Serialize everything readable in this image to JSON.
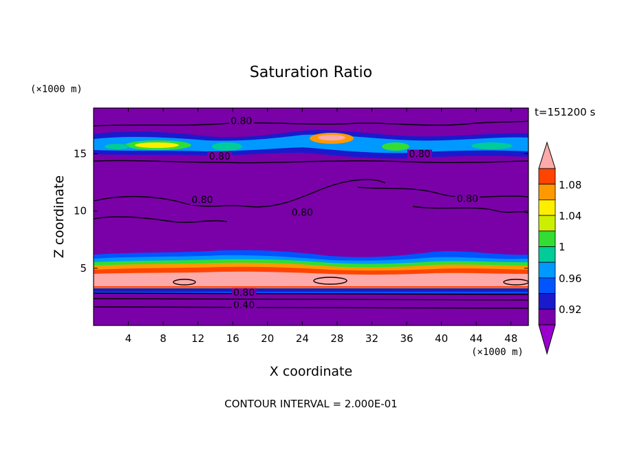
{
  "chart_data": {
    "type": "heatmap",
    "title": "Saturation Ratio",
    "xlabel": "X coordinate",
    "ylabel": "Z coordinate",
    "x_unit": "(×1000 m)",
    "y_unit": "(×1000 m)",
    "time_label": "t=151200 s",
    "footer": "CONTOUR INTERVAL = 2.000E-01",
    "xlim": [
      0,
      50
    ],
    "ylim": [
      0,
      19
    ],
    "x_ticks": [
      4,
      8,
      12,
      16,
      20,
      24,
      28,
      32,
      36,
      40,
      44,
      48
    ],
    "y_ticks": [
      5,
      10,
      15
    ],
    "colorbar": {
      "labels": [
        "0.92",
        "0.96",
        "1",
        "1.04",
        "1.08"
      ],
      "levels": [
        0.9,
        0.92,
        0.94,
        0.96,
        0.98,
        1.0,
        1.02,
        1.04,
        1.06,
        1.08,
        1.1
      ],
      "colors": [
        "#9900cc",
        "#7a00a8",
        "#1a1acc",
        "#0055ff",
        "#0099ff",
        "#00cc99",
        "#33dd33",
        "#ccee00",
        "#ffee00",
        "#ff9900",
        "#ff4400",
        "#ffaaaa"
      ],
      "extends": "both"
    },
    "contour_labels": [
      {
        "text": "0.80",
        "x": 17.0,
        "z": 17.6
      },
      {
        "text": "0.80",
        "x": 14.5,
        "z": 14.5
      },
      {
        "text": "0.80",
        "x": 37.5,
        "z": 14.7
      },
      {
        "text": "0.80",
        "x": 12.5,
        "z": 10.7
      },
      {
        "text": "0.80",
        "x": 24.0,
        "z": 9.6
      },
      {
        "text": "0.80",
        "x": 43.0,
        "z": 10.8
      },
      {
        "text": "0.80",
        "x": 17.3,
        "z": 2.6
      },
      {
        "text": "0.40",
        "x": 17.3,
        "z": 1.5
      }
    ],
    "contour_interval": 0.2
  }
}
